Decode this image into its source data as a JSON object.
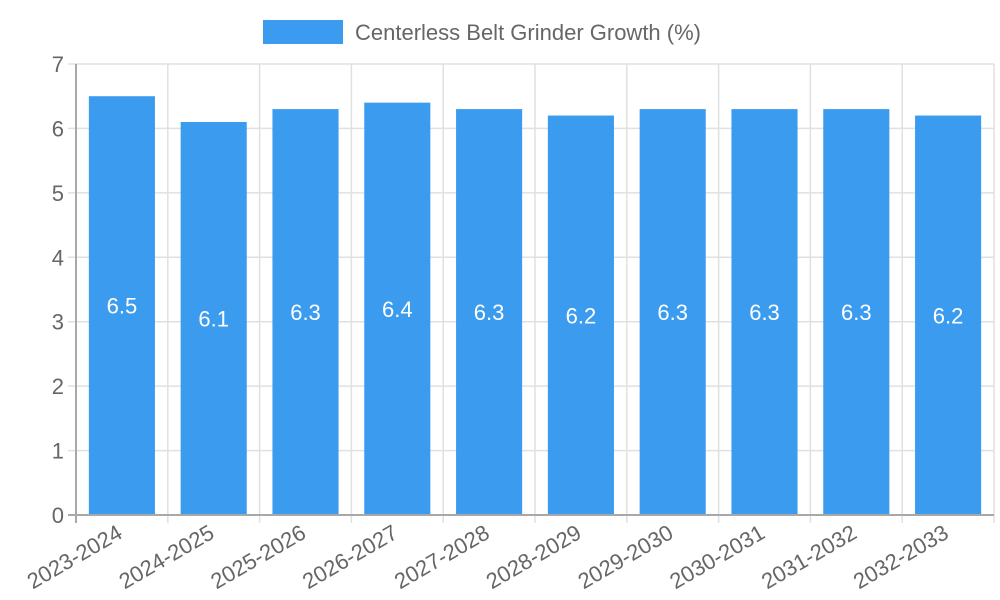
{
  "chart_data": {
    "type": "bar",
    "title": "",
    "legend": [
      {
        "label": "Centerless Belt Grinder Growth (%)",
        "color": "#3b9bef"
      }
    ],
    "legend_position": "top",
    "categories": [
      "2023-2024",
      "2024-2025",
      "2025-2026",
      "2026-2027",
      "2027-2028",
      "2028-2029",
      "2029-2030",
      "2030-2031",
      "2031-2032",
      "2032-2033"
    ],
    "series": [
      {
        "name": "Centerless Belt Grinder Growth (%)",
        "color": "#3b9bef",
        "values": [
          6.5,
          6.1,
          6.3,
          6.4,
          6.3,
          6.2,
          6.3,
          6.3,
          6.3,
          6.2
        ]
      }
    ],
    "data_labels": [
      "6.5",
      "6.1",
      "6.3",
      "6.4",
      "6.3",
      "6.2",
      "6.3",
      "6.3",
      "6.3",
      "6.2"
    ],
    "xlabel": "",
    "ylabel": "",
    "ylim": [
      0,
      7
    ],
    "yticks": [
      0,
      1,
      2,
      3,
      4,
      5,
      6,
      7
    ],
    "grid": true,
    "x_tick_rotation": -30
  },
  "colors": {
    "bar": "#3b9bef",
    "grid": "#e0e0e0",
    "axis": "#a8a8a8",
    "text": "#666666",
    "label": "#ffffff"
  }
}
